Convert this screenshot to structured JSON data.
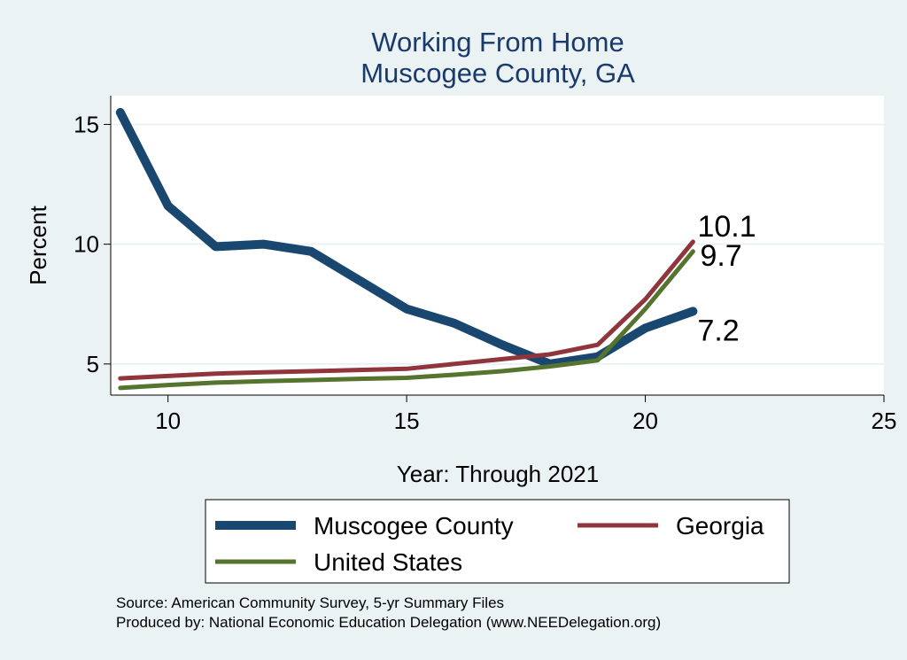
{
  "chart_data": {
    "type": "line",
    "title": [
      "Working From Home",
      "Muscogee County, GA"
    ],
    "xlabel": "Year: Through 2021",
    "ylabel": "Percent",
    "xlim": [
      8.8,
      25
    ],
    "ylim": [
      3.7,
      16.2
    ],
    "xticks": [
      10,
      15,
      20,
      25
    ],
    "yticks": [
      5,
      10,
      15
    ],
    "grid": "horizontal",
    "legend": "bottom",
    "series": [
      {
        "name": "Muscogee County",
        "color": "#1a476f",
        "x": [
          9,
          10,
          11,
          12,
          13,
          14,
          15,
          16,
          17,
          18,
          19,
          20,
          21
        ],
        "y": [
          15.5,
          11.6,
          9.9,
          10.0,
          9.7,
          8.5,
          7.3,
          6.7,
          5.8,
          5.0,
          5.3,
          6.5,
          7.2
        ],
        "end_label": "7.2"
      },
      {
        "name": "Georgia",
        "color": "#90353b",
        "x": [
          9,
          10,
          11,
          12,
          13,
          14,
          15,
          16,
          17,
          18,
          19,
          20,
          21
        ],
        "y": [
          4.4,
          4.5,
          4.6,
          4.65,
          4.7,
          4.75,
          4.8,
          5.0,
          5.2,
          5.4,
          5.8,
          7.7,
          10.1
        ],
        "end_label": "10.1"
      },
      {
        "name": "United States",
        "color": "#55752f",
        "x": [
          9,
          10,
          11,
          12,
          13,
          14,
          15,
          16,
          17,
          18,
          19,
          20,
          21
        ],
        "y": [
          4.0,
          4.12,
          4.22,
          4.28,
          4.33,
          4.38,
          4.42,
          4.55,
          4.7,
          4.9,
          5.15,
          7.3,
          9.7
        ],
        "end_label": "9.7"
      }
    ],
    "notes": [
      "Source: American Community Survey, 5-yr Summary Files",
      "Produced by: National Economic Education Delegation (www.NEEDelegation.org)"
    ]
  }
}
